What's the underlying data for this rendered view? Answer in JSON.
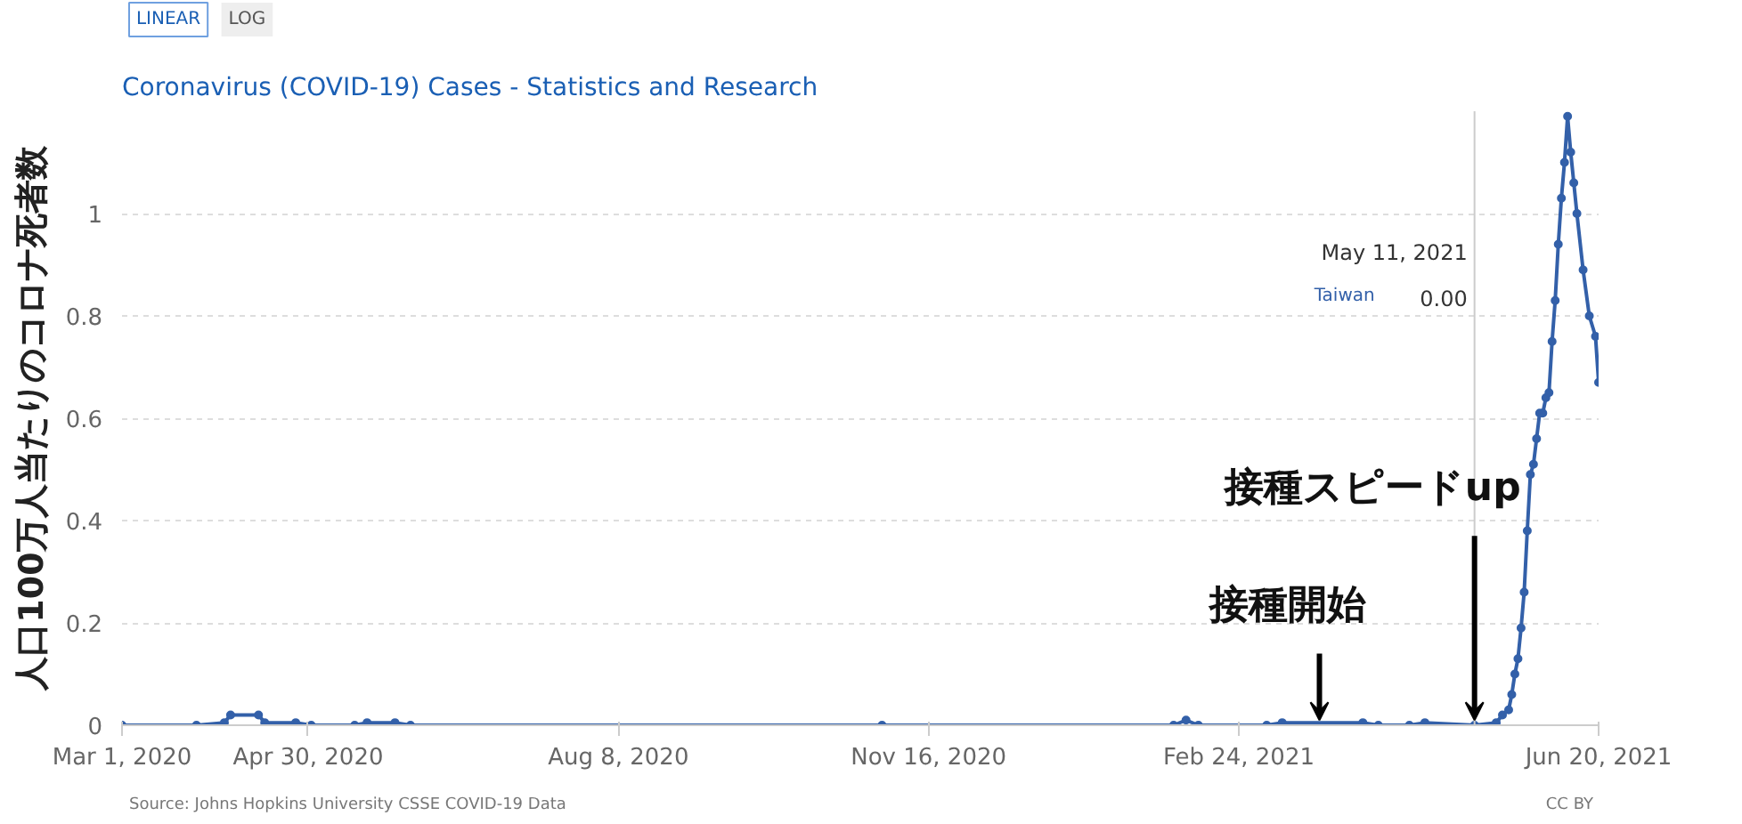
{
  "chart_data": {
    "type": "line",
    "title": "Coronavirus (COVID-19) Cases - Statistics and Research",
    "ylabel": "人口100万人当たりのコロナ死者数",
    "x": [
      "2020-03-01",
      "2020-03-25",
      "2020-04-03",
      "2020-04-05",
      "2020-04-14",
      "2020-04-16",
      "2020-04-26",
      "2020-05-01",
      "2020-05-15",
      "2020-05-19",
      "2020-05-28",
      "2020-06-02",
      "2020-11-01",
      "2021-02-03",
      "2021-02-07",
      "2021-02-11",
      "2021-03-05",
      "2021-03-10",
      "2021-04-05",
      "2021-04-10",
      "2021-04-20",
      "2021-04-25",
      "2021-05-11",
      "2021-05-18",
      "2021-05-20",
      "2021-05-22",
      "2021-05-23",
      "2021-05-24",
      "2021-05-25",
      "2021-05-26",
      "2021-05-27",
      "2021-05-28",
      "2021-05-29",
      "2021-05-30",
      "2021-05-31",
      "2021-06-01",
      "2021-06-02",
      "2021-06-03",
      "2021-06-04",
      "2021-06-05",
      "2021-06-06",
      "2021-06-07",
      "2021-06-08",
      "2021-06-09",
      "2021-06-10",
      "2021-06-11",
      "2021-06-12",
      "2021-06-13",
      "2021-06-15",
      "2021-06-17",
      "2021-06-19",
      "2021-06-20"
    ],
    "series": [
      {
        "name": "Taiwan",
        "color": "#3360a9",
        "values": [
          0,
          0,
          0.005,
          0.02,
          0.02,
          0.005,
          0.005,
          0,
          0,
          0.005,
          0.005,
          0,
          0,
          0,
          0.01,
          0,
          0,
          0.005,
          0.005,
          0,
          0,
          0.005,
          0,
          0.005,
          0.02,
          0.03,
          0.06,
          0.1,
          0.13,
          0.19,
          0.26,
          0.38,
          0.49,
          0.51,
          0.56,
          0.61,
          0.61,
          0.64,
          0.65,
          0.75,
          0.83,
          0.94,
          1.03,
          1.1,
          1.19,
          1.12,
          1.06,
          1.0,
          0.89,
          0.8,
          0.76,
          0.67
        ]
      }
    ],
    "xlim": [
      "2020-03-01",
      "2021-06-20"
    ],
    "xticks": [
      {
        "value": "2020-03-01",
        "label": "Mar 1, 2020"
      },
      {
        "value": "2020-04-30",
        "label": "Apr 30, 2020"
      },
      {
        "value": "2020-08-08",
        "label": "Aug 8, 2020"
      },
      {
        "value": "2020-11-16",
        "label": "Nov 16, 2020"
      },
      {
        "value": "2021-02-24",
        "label": "Feb 24, 2021"
      },
      {
        "value": "2021-06-20",
        "label": "Jun 20, 2021"
      }
    ],
    "ylim": [
      0,
      1.2
    ],
    "yticks": [
      0,
      0.2,
      0.4,
      0.6,
      0.8,
      1
    ],
    "grid": "y",
    "marker": "circle",
    "line_style": "solid",
    "ref_lines": [
      {
        "axis": "x",
        "value": "2021-05-11",
        "label": "May 11, 2021",
        "color": "#cccccc"
      }
    ],
    "annotations": [
      "LINEAR",
      "LOG",
      "Source: Johns Hopkins University CSSE COVID-19 Data",
      "CC BY",
      "0.00",
      {
        "text": "接種開始",
        "x": "2021-03-22",
        "y": 0
      },
      {
        "text": "接種スピードup",
        "x": "2021-05-11",
        "y": 0
      }
    ]
  }
}
